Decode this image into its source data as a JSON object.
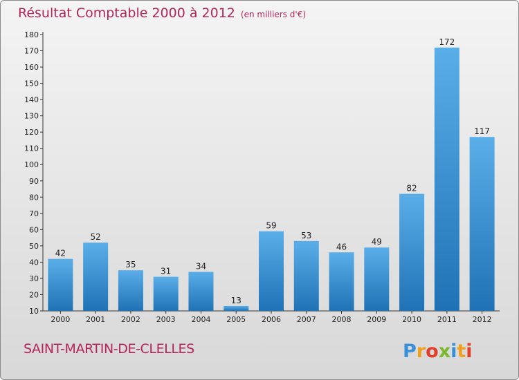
{
  "title": "Résultat Comptable 2000 à 2012",
  "unit": "(en milliers d'€)",
  "commune": "SAINT-MARTIN-DE-CLELLES",
  "logo_text": "Proxiti",
  "colors": {
    "title": "#b5245a",
    "bar_top": "#5aaee8",
    "bar_bottom": "#1f72b5"
  },
  "chart_data": {
    "type": "bar",
    "title": "Résultat Comptable 2000 à 2012",
    "subtitle": "(en milliers d'€)",
    "categories": [
      "2000",
      "2001",
      "2002",
      "2003",
      "2004",
      "2005",
      "2006",
      "2007",
      "2008",
      "2009",
      "2010",
      "2011",
      "2012"
    ],
    "values": [
      42,
      52,
      35,
      31,
      34,
      13,
      59,
      53,
      46,
      49,
      82,
      172,
      117
    ],
    "ylim": [
      10,
      180
    ],
    "yticks": [
      10,
      20,
      30,
      40,
      50,
      60,
      70,
      80,
      90,
      100,
      110,
      120,
      130,
      140,
      150,
      160,
      170,
      180
    ],
    "grid": false,
    "data_labels": true
  }
}
